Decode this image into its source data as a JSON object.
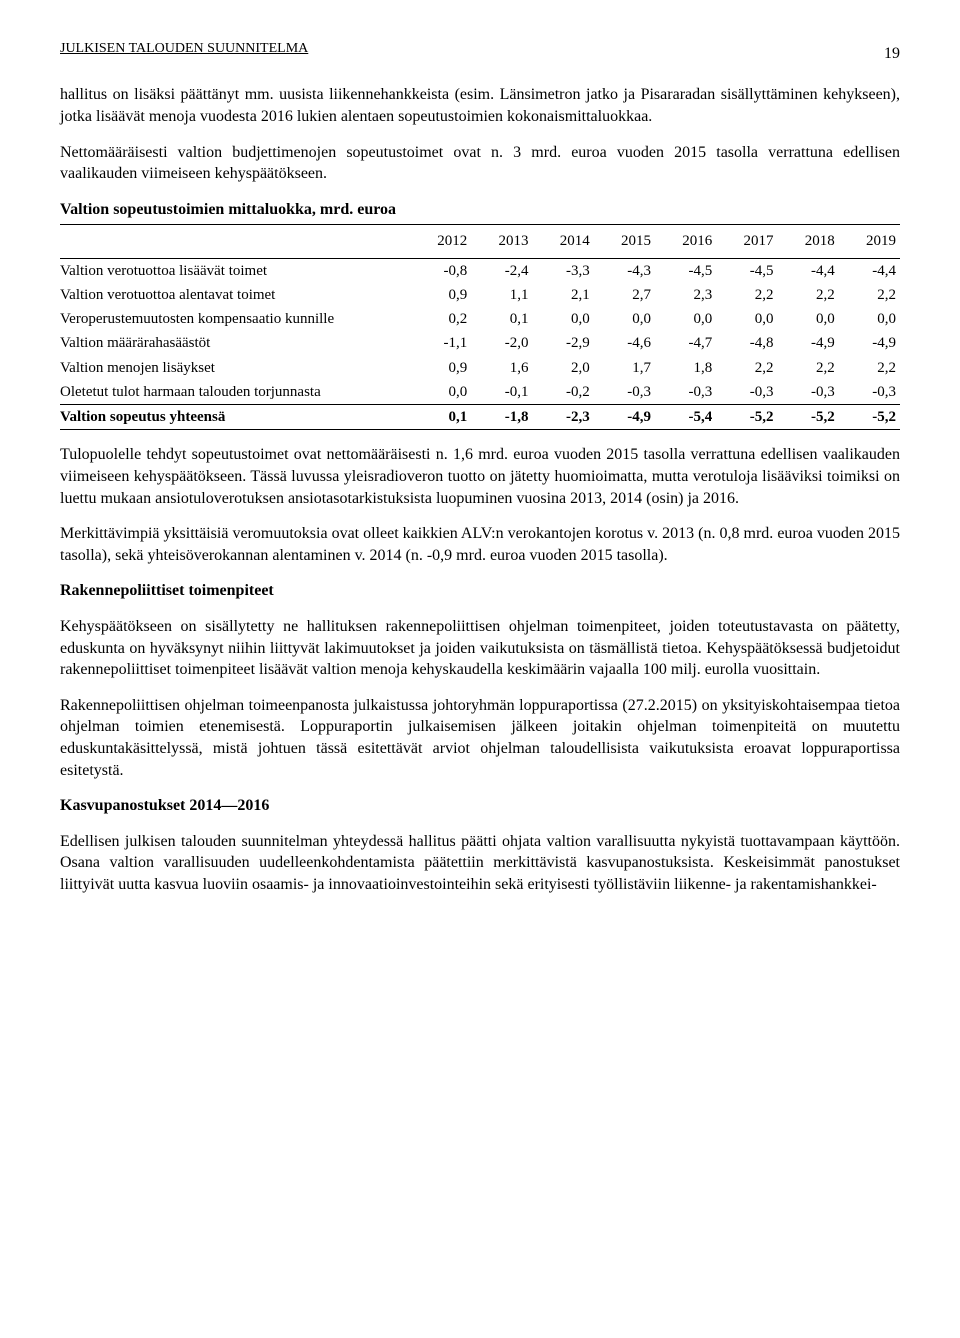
{
  "header": {
    "title": "JULKISEN TALOUDEN SUUNNITELMA",
    "page": "19"
  },
  "p1": "hallitus on lisäksi päättänyt mm. uusista liikennehankkeista (esim. Länsimetron jatko ja Pisararadan sisällyttäminen kehykseen), jotka lisäävät menoja vuodesta 2016 lukien alentaen sopeutustoimien kokonaismittaluokkaa.",
  "p2": "Nettomääräisesti valtion budjettimenojen sopeutustoimet ovat n. 3 mrd. euroa vuoden 2015 tasolla verrattuna edellisen vaalikauden viimeiseen kehyspäätökseen.",
  "table": {
    "title": "Valtion sopeutustoimien mittaluokka, mrd. euroa",
    "years": [
      "2012",
      "2013",
      "2014",
      "2015",
      "2016",
      "2017",
      "2018",
      "2019"
    ],
    "rows": [
      {
        "label": "Valtion verotuottoa lisäävät toimet",
        "vals": [
          "-0,8",
          "-2,4",
          "-3,3",
          "-4,3",
          "-4,5",
          "-4,5",
          "-4,4",
          "-4,4"
        ],
        "bold": false
      },
      {
        "label": "Valtion verotuottoa alentavat toimet",
        "vals": [
          "0,9",
          "1,1",
          "2,1",
          "2,7",
          "2,3",
          "2,2",
          "2,2",
          "2,2"
        ],
        "bold": false
      },
      {
        "label": "Veroperustemuutosten kompensaatio kunnille",
        "vals": [
          "0,2",
          "0,1",
          "0,0",
          "0,0",
          "0,0",
          "0,0",
          "0,0",
          "0,0"
        ],
        "bold": false
      },
      {
        "label": "Valtion määrärahasäästöt",
        "vals": [
          "-1,1",
          "-2,0",
          "-2,9",
          "-4,6",
          "-4,7",
          "-4,8",
          "-4,9",
          "-4,9"
        ],
        "bold": false
      },
      {
        "label": "Valtion menojen lisäykset",
        "vals": [
          "0,9",
          "1,6",
          "2,0",
          "1,7",
          "1,8",
          "2,2",
          "2,2",
          "2,2"
        ],
        "bold": false
      },
      {
        "label": "Oletetut tulot harmaan talouden torjunnasta",
        "vals": [
          "0,0",
          "-0,1",
          "-0,2",
          "-0,3",
          "-0,3",
          "-0,3",
          "-0,3",
          "-0,3"
        ],
        "bold": false
      },
      {
        "label": "Valtion sopeutus yhteensä",
        "vals": [
          "0,1",
          "-1,8",
          "-2,3",
          "-4,9",
          "-5,4",
          "-5,2",
          "-5,2",
          "-5,2"
        ],
        "bold": true
      }
    ]
  },
  "p3": "Tulopuolelle tehdyt sopeutustoimet ovat nettomääräisesti n. 1,6 mrd. euroa vuoden 2015 tasolla verrattuna edellisen vaalikauden viimeiseen kehyspäätökseen. Tässä luvussa yleisradioveron tuotto on jätetty huomioimatta, mutta verotuloja lisääviksi toimiksi on luettu mukaan ansiotuloverotuksen ansiotasotarkistuksista luopuminen vuosina 2013, 2014 (osin) ja 2016.",
  "p4": "Merkittävimpiä yksittäisiä veromuutoksia ovat olleet kaikkien ALV:n verokantojen korotus v. 2013 (n. 0,8 mrd. euroa vuoden 2015 tasolla), sekä yhteisöverokannan alentaminen v. 2014 (n. -0,9 mrd. euroa vuoden 2015 tasolla).",
  "h1": "Rakennepoliittiset toimenpiteet",
  "p5": "Kehyspäätökseen on sisällytetty ne hallituksen rakennepoliittisen ohjelman toimenpiteet, joiden toteutustavasta on päätetty, eduskunta on hyväksynyt niihin liittyvät lakimuutokset ja joiden vaikutuksista on täsmällistä tietoa. Kehyspäätöksessä budjetoidut rakennepoliittiset toimenpiteet lisäävät valtion menoja kehyskaudella keskimäärin vajaalla 100 milj. eurolla vuosittain.",
  "p6": "Rakennepoliittisen ohjelman toimeenpanosta julkaistussa johtoryhmän loppuraportissa (27.2.2015) on yksityiskohtaisempaa tietoa ohjelman toimien etenemisestä. Loppuraportin julkaisemisen jälkeen joitakin ohjelman toimenpiteitä on muutettu eduskuntakäsittelyssä, mistä johtuen tässä esitettävät arviot ohjelman taloudellisista vaikutuksista eroavat loppuraportissa esitetystä.",
  "h2": "Kasvupanostukset 2014—2016",
  "p7": "Edellisen julkisen talouden suunnitelman yhteydessä hallitus päätti ohjata valtion varallisuutta nykyistä tuottavampaan käyttöön. Osana valtion varallisuuden uudelleenkohdentamista päätettiin merkittävistä kasvupanostuksista. Keskeisimmät panostukset liittyivät uutta kasvua luoviin osaamis- ja innovaatioinvestointeihin sekä erityisesti työllistäviin liikenne- ja rakentamishankkei-"
}
